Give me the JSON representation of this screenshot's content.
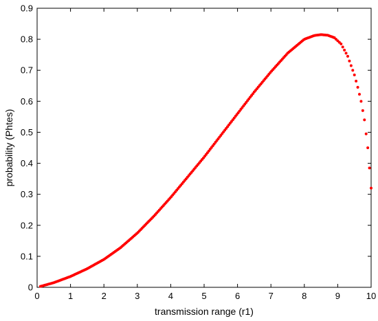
{
  "chart_data": {
    "type": "scatter",
    "xlabel": "transmission range (r1)",
    "ylabel": "probability (Phtes)",
    "xlim": [
      0,
      10
    ],
    "ylim": [
      0,
      0.9
    ],
    "xticks": [
      0,
      1,
      2,
      3,
      4,
      5,
      6,
      7,
      8,
      9,
      10
    ],
    "yticks": [
      0,
      0.1,
      0.2,
      0.3,
      0.4,
      0.5,
      0.6,
      0.7,
      0.8,
      0.9
    ],
    "xtick_labels": [
      "0",
      "1",
      "2",
      "3",
      "4",
      "5",
      "6",
      "7",
      "8",
      "9",
      "10"
    ],
    "ytick_labels": [
      "0",
      "0.1",
      "0.2",
      "0.3",
      "0.4",
      "0.5",
      "0.6",
      "0.7",
      "0.8",
      "0.9"
    ],
    "grid": false,
    "marker_color": "#ff0000",
    "series": [
      {
        "x": [
          0.1,
          0.5,
          1.0,
          1.5,
          2.0,
          2.5,
          3.0,
          3.5,
          4.0,
          4.5,
          5.0,
          5.5,
          6.0,
          6.5,
          7.0,
          7.5,
          8.0,
          8.3,
          8.5,
          8.7,
          8.9,
          9.1,
          9.3,
          9.5,
          9.6,
          9.7,
          9.8,
          9.9,
          10.0
        ],
        "y": [
          0.003,
          0.015,
          0.035,
          0.06,
          0.09,
          0.128,
          0.175,
          0.23,
          0.29,
          0.355,
          0.42,
          0.49,
          0.56,
          0.63,
          0.695,
          0.755,
          0.8,
          0.812,
          0.815,
          0.813,
          0.805,
          0.785,
          0.745,
          0.685,
          0.645,
          0.6,
          0.54,
          0.45,
          0.32
        ]
      }
    ]
  }
}
